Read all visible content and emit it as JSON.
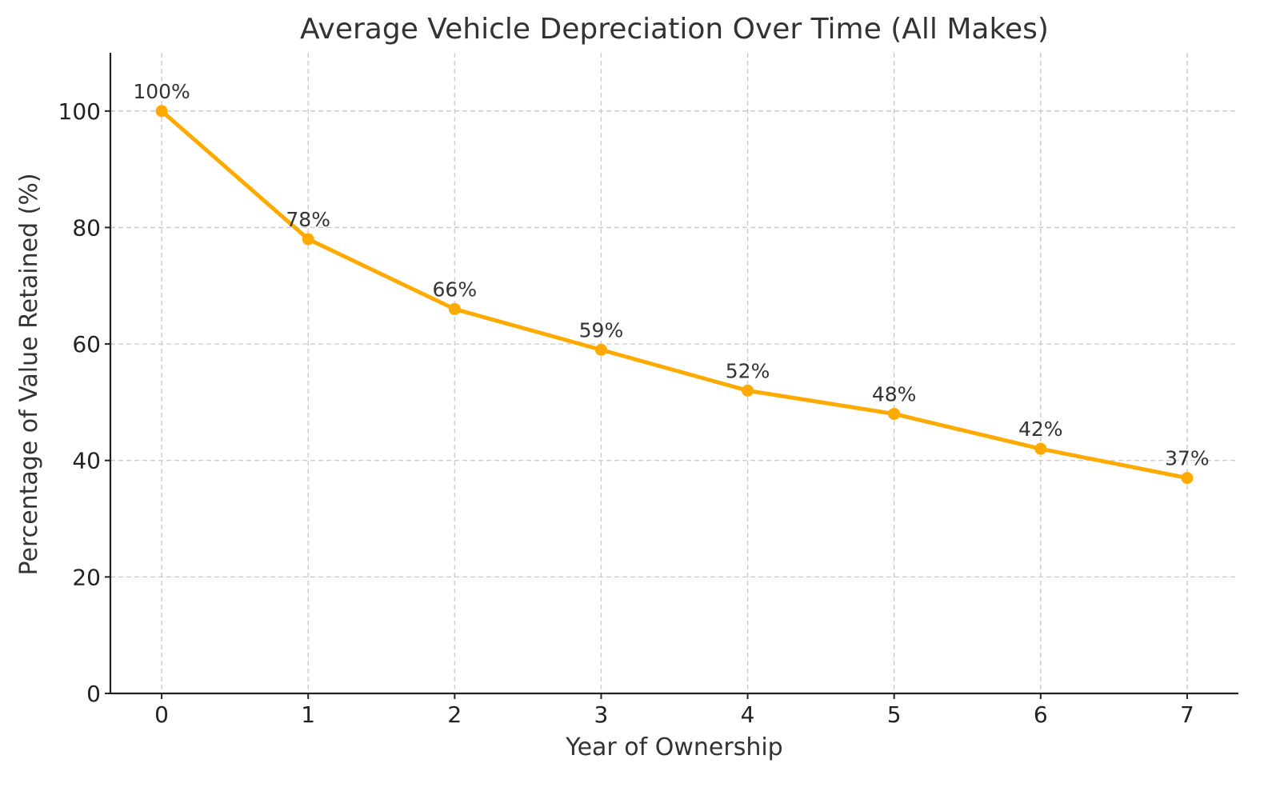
{
  "chart_data": {
    "type": "line",
    "title": "Average Vehicle Depreciation Over Time (All Makes)",
    "xlabel": "Year of Ownership",
    "ylabel": "Percentage of Value Retained (%)",
    "x": [
      0,
      1,
      2,
      3,
      4,
      5,
      6,
      7
    ],
    "values": [
      100,
      78,
      66,
      59,
      52,
      48,
      42,
      37
    ],
    "data_labels": [
      "100%",
      "78%",
      "66%",
      "59%",
      "52%",
      "48%",
      "42%",
      "37%"
    ],
    "x_ticks": [
      0,
      1,
      2,
      3,
      4,
      5,
      6,
      7
    ],
    "y_ticks": [
      0,
      20,
      40,
      60,
      80,
      100
    ],
    "xlim": [
      -0.35,
      7.35
    ],
    "ylim": [
      0,
      110
    ],
    "grid": true,
    "line_color": "#FFAA00",
    "marker": "circle"
  }
}
